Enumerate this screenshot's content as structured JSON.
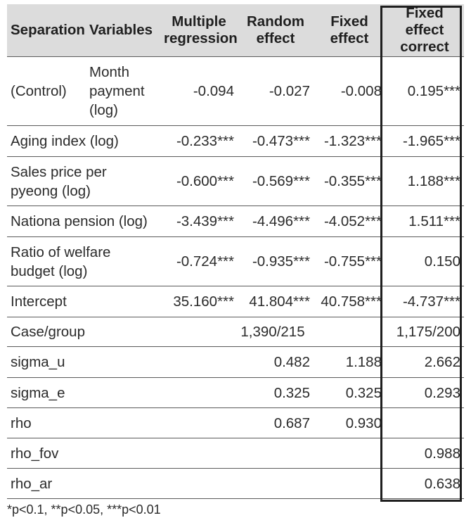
{
  "header": {
    "separation": "Separation",
    "variables": "Variables",
    "multiple": "Multiple regression",
    "random": "Random effect",
    "fixed": "Fixed effect",
    "correct": "Fixed effect correct"
  },
  "rows": {
    "month": {
      "sep": "(Control)",
      "var": "Month payment (log)",
      "m": "-0.094",
      "r": "-0.027",
      "f": "-0.008",
      "c": "0.195***"
    },
    "aging": {
      "label": "Aging index (log)",
      "m": "-0.233***",
      "r": "-0.473***",
      "f": "-1.323***",
      "c": "-1.965***"
    },
    "sales": {
      "label": "Sales price per pyeong (log)",
      "m": "-0.600***",
      "r": "-0.569***",
      "f": "-0.355***",
      "c": "1.188***"
    },
    "pension": {
      "label": "Nationa pension (log)",
      "m": "-3.439***",
      "r": "-4.496***",
      "f": "-4.052***",
      "c": "1.511***"
    },
    "welfare": {
      "label": "Ratio of welfare budget (log)",
      "m": "-0.724***",
      "r": "-0.935***",
      "f": "-0.755***",
      "c": "0.150"
    },
    "intercept": {
      "label": "Intercept",
      "m": "35.160***",
      "r": "41.804***",
      "f": "40.758***",
      "c": "-4.737***"
    },
    "case": {
      "label": "Case/group",
      "mid": "1,390/215",
      "c": "1,175/200"
    },
    "sigma_u": {
      "label": "sigma_u",
      "r": "0.482",
      "f": "1.188",
      "c": "2.662"
    },
    "sigma_e": {
      "label": "sigma_e",
      "r": "0.325",
      "f": "0.325",
      "c": "0.293"
    },
    "rho": {
      "label": "rho",
      "r": "0.687",
      "f": "0.930",
      "c": ""
    },
    "rho_fov": {
      "label": "rho_fov",
      "c": "0.988"
    },
    "rho_ar": {
      "label": "rho_ar",
      "c": "0.638"
    }
  },
  "footnote": "*p<0.1, **p<0.05, ***p<0.01"
}
